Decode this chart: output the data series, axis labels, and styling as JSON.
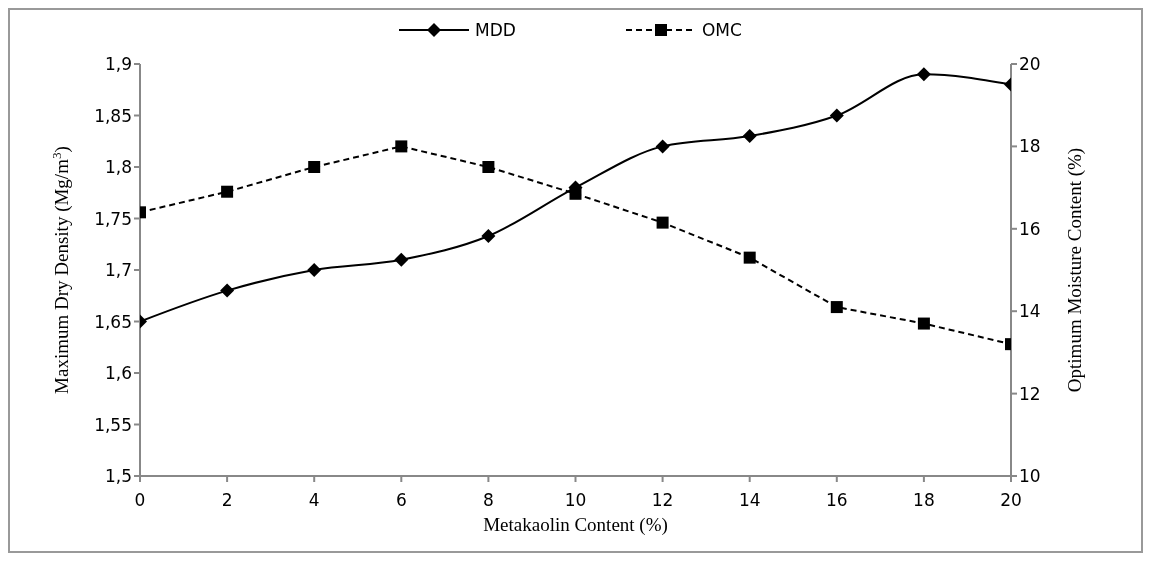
{
  "chart_data": {
    "type": "line",
    "xlabel": "Metakaolin Content (%)",
    "ylabel": "Maximum Dry Density (Mg/m$^{3}$)",
    "y2label": "Optimum Moisture Content (%)",
    "x": [
      0,
      2,
      4,
      6,
      8,
      10,
      12,
      14,
      16,
      18,
      20
    ],
    "xlim": [
      0,
      20
    ],
    "xticks": [
      0,
      2,
      4,
      6,
      8,
      10,
      12,
      14,
      16,
      18,
      20
    ],
    "ylim": [
      1.5,
      1.9
    ],
    "yticks": [
      {
        "value": 1.5,
        "label": "1,5"
      },
      {
        "value": 1.55,
        "label": "1,55"
      },
      {
        "value": 1.6,
        "label": "1,6"
      },
      {
        "value": 1.65,
        "label": "1,65"
      },
      {
        "value": 1.7,
        "label": "1,7"
      },
      {
        "value": 1.75,
        "label": "1,75"
      },
      {
        "value": 1.8,
        "label": "1,8"
      },
      {
        "value": 1.85,
        "label": "1,85"
      },
      {
        "value": 1.9,
        "label": "1,9"
      }
    ],
    "y2lim": [
      10,
      20
    ],
    "y2ticks": [
      10,
      12,
      14,
      16,
      18,
      20
    ],
    "grid": false,
    "legend": "top",
    "series": [
      {
        "name": "MDD",
        "color": "#000000",
        "marker": "diamond",
        "line_style": "solid",
        "values": [
          1.65,
          1.68,
          1.7,
          1.71,
          1.733,
          1.78,
          1.82,
          1.83,
          1.85,
          1.89,
          1.88
        ]
      },
      {
        "name": "OMC",
        "color": "#000000",
        "marker": "square",
        "line_style": "dashed",
        "axis": "y2",
        "values": [
          16.4,
          16.9,
          17.5,
          18.0,
          17.5,
          16.85,
          16.15,
          15.3,
          14.1,
          13.7,
          13.2
        ]
      }
    ]
  }
}
